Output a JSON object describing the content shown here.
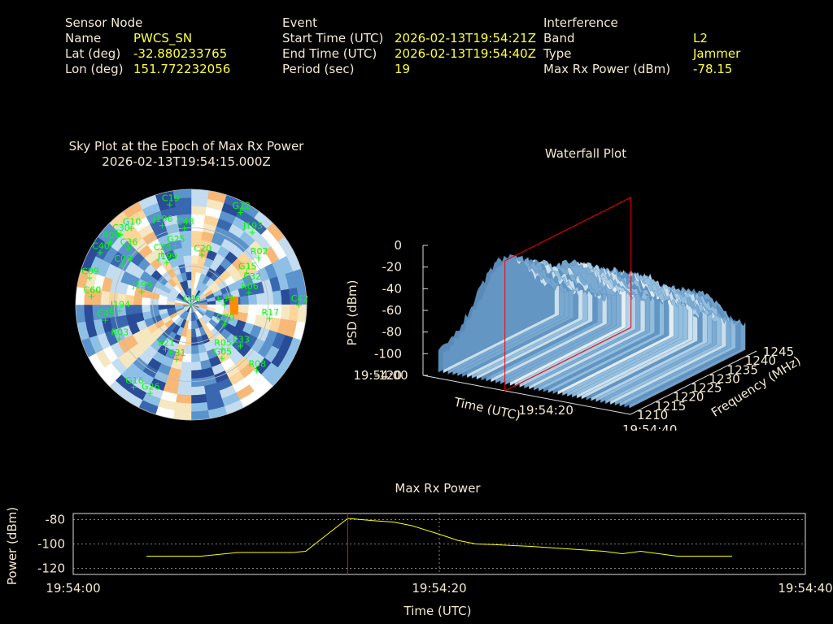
{
  "header": {
    "sensor": {
      "heading": "Sensor Node",
      "rows": [
        {
          "label": "Name",
          "value": "PWCS_SN"
        },
        {
          "label": "Lat (deg)",
          "value": "-32.880233765"
        },
        {
          "label": "Lon (deg)",
          "value": "151.772232056"
        }
      ]
    },
    "event": {
      "heading": "Event",
      "rows": [
        {
          "label": "Start Time (UTC)",
          "value": "2026-02-13T19:54:21Z"
        },
        {
          "label": "End Time (UTC)",
          "value": "2026-02-13T19:54:40Z"
        },
        {
          "label": "Period (sec)",
          "value": "19"
        }
      ]
    },
    "interference": {
      "heading": "Interference",
      "rows": [
        {
          "label": "Band",
          "value": "L2"
        },
        {
          "label": "Type",
          "value": "Jammer"
        },
        {
          "label": "Max Rx Power (dBm)",
          "value": "-78.15"
        }
      ]
    }
  },
  "colors": {
    "label": "#f3ead0",
    "value": "#ffff40",
    "satellite": "#00ff00",
    "marker": "#ff0000",
    "trace": "#ffff00",
    "jammer": "#ff8c00"
  },
  "chart_data": [
    {
      "type": "polar-heatmap",
      "title": "Sky Plot at the Epoch of Max Rx Power",
      "subtitle": "2026-02-13T19:54:15.000Z",
      "satellites": [
        {
          "id": "C46",
          "az": 0,
          "el": 90
        },
        {
          "id": "G12",
          "az": 28,
          "el": 8
        },
        {
          "id": "C19",
          "az": 348,
          "el": 10
        },
        {
          "id": "C48",
          "az": 355,
          "el": 30
        },
        {
          "id": "J193",
          "az": 40,
          "el": 16
        },
        {
          "id": "G10",
          "az": 322,
          "el": 14
        },
        {
          "id": "C30",
          "az": 315,
          "el": 12
        },
        {
          "id": "J196",
          "az": 340,
          "el": 24
        },
        {
          "id": "R09",
          "az": 308,
          "el": 10
        },
        {
          "id": "C40",
          "az": 300,
          "el": 8
        },
        {
          "id": "C36",
          "az": 312,
          "el": 24
        },
        {
          "id": "G25",
          "az": 345,
          "el": 42
        },
        {
          "id": "R02",
          "az": 55,
          "el": 26
        },
        {
          "id": "C23",
          "az": 330,
          "el": 44
        },
        {
          "id": "C20",
          "az": 12,
          "el": 50
        },
        {
          "id": "C08",
          "az": 300,
          "el": 28
        },
        {
          "id": "J199",
          "az": 330,
          "el": 52
        },
        {
          "id": "C09",
          "az": 285,
          "el": 8
        },
        {
          "id": "G15",
          "az": 60,
          "el": 40
        },
        {
          "id": "C32",
          "az": 70,
          "el": 40
        },
        {
          "id": "R06",
          "az": 78,
          "el": 44
        },
        {
          "id": "C60",
          "az": 275,
          "el": 12
        },
        {
          "id": "C42",
          "az": 90,
          "el": 6
        },
        {
          "id": "J195",
          "az": 285,
          "el": 50
        },
        {
          "id": "C45",
          "az": 260,
          "el": 22
        },
        {
          "id": "J194",
          "az": 265,
          "el": 34
        },
        {
          "id": "R17",
          "az": 100,
          "el": 28
        },
        {
          "id": "E34",
          "az": 90,
          "el": 64
        },
        {
          "id": "G30",
          "az": 120,
          "el": 60
        },
        {
          "id": "R03",
          "az": 245,
          "el": 28
        },
        {
          "id": "R05",
          "az": 145,
          "el": 48
        },
        {
          "id": "G05",
          "az": 150,
          "el": 42
        },
        {
          "id": "E33",
          "az": 130,
          "el": 40
        },
        {
          "id": "E21",
          "az": 210,
          "el": 50
        },
        {
          "id": "E31",
          "az": 195,
          "el": 46
        },
        {
          "id": "R08",
          "az": 135,
          "el": 18
        },
        {
          "id": "G16",
          "az": 215,
          "el": 12
        },
        {
          "id": "G26",
          "az": 205,
          "el": 14
        }
      ]
    },
    {
      "type": "surface",
      "title": "Waterfall Plot",
      "xlabel": "Time (UTC)",
      "ylabel": "Frequency (MHz)",
      "zlabel": "PSD (dBm)",
      "x_ticks": [
        "19:54:00",
        "19:54:20",
        "19:54:40"
      ],
      "y_ticks": [
        "1210",
        "1215",
        "1220",
        "1225",
        "1230",
        "1235",
        "1240",
        "1245"
      ],
      "z_ticks": [
        "0",
        "-20",
        "-40",
        "-60",
        "-80",
        "-100",
        "-120"
      ],
      "zlim": [
        -120,
        0
      ],
      "ylim": [
        1210,
        1245
      ],
      "marker_time": "19:54:15"
    },
    {
      "type": "line",
      "title": "Max Rx Power",
      "xlabel": "Time (UTC)",
      "ylabel": "Power (dBm)",
      "x_ticks": [
        "19:54:00",
        "19:54:20",
        "19:54:40"
      ],
      "y_ticks": [
        "-80",
        "-100",
        "-120"
      ],
      "ylim": [
        -125,
        -75
      ],
      "xlim_sec": [
        0,
        40
      ],
      "marker_sec": 15,
      "series": [
        {
          "values": [
            [
              4.0,
              -110
            ],
            [
              7.0,
              -110
            ],
            [
              9.0,
              -107
            ],
            [
              10.0,
              -107
            ],
            [
              12.0,
              -107
            ],
            [
              12.7,
              -106
            ],
            [
              15.0,
              -79
            ],
            [
              16.5,
              -81
            ],
            [
              17.5,
              -82
            ],
            [
              18.5,
              -85
            ],
            [
              20.0,
              -92
            ],
            [
              21.0,
              -97
            ],
            [
              22.0,
              -100
            ],
            [
              23.0,
              -100.5
            ],
            [
              25.0,
              -102
            ],
            [
              27.0,
              -104
            ],
            [
              29.0,
              -106
            ],
            [
              30.0,
              -108
            ],
            [
              31.0,
              -106
            ],
            [
              33.0,
              -110
            ],
            [
              36.0,
              -110
            ]
          ]
        }
      ]
    }
  ]
}
